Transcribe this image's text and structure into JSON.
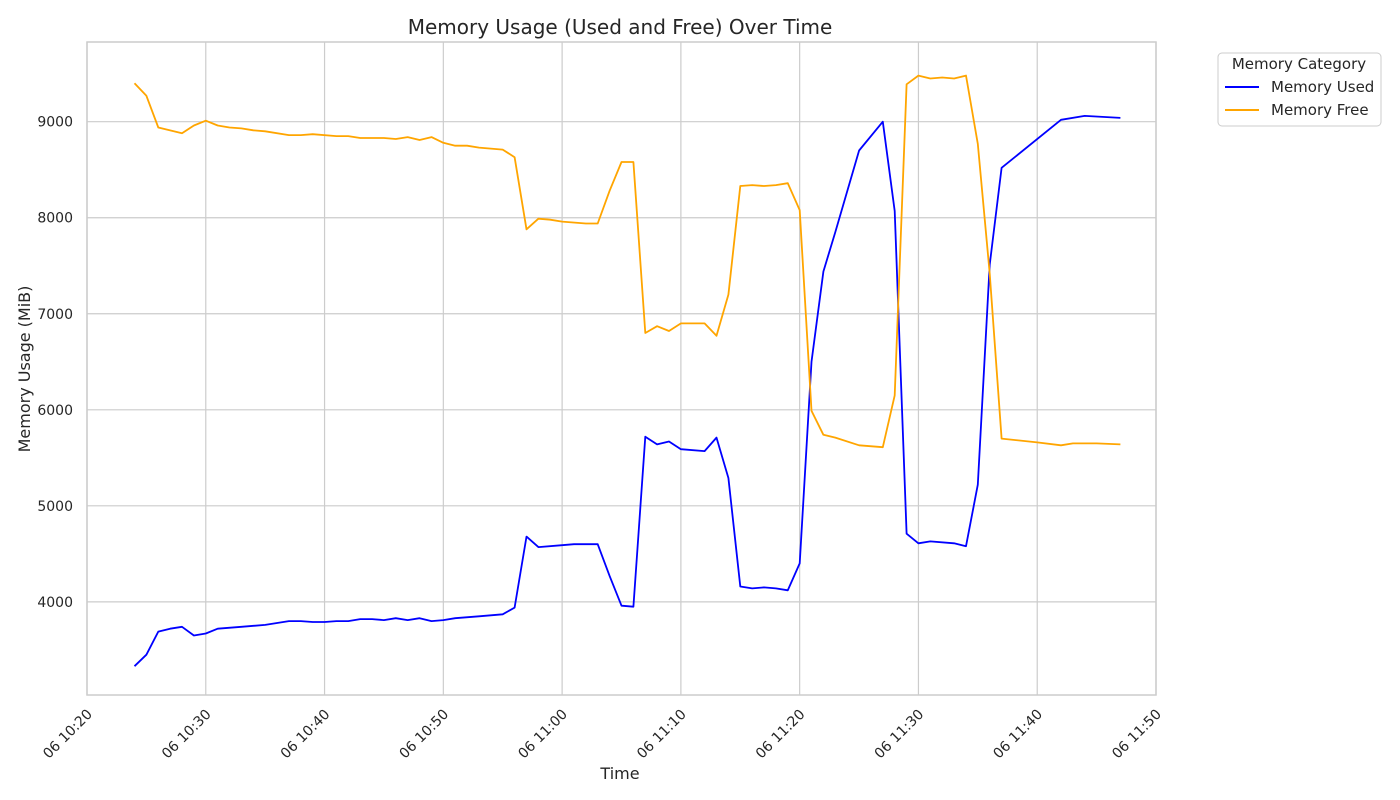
{
  "chart_data": {
    "type": "line",
    "title": "Memory Usage (Used and Free) Over Time",
    "xlabel": "Time",
    "ylabel": "Memory Usage (MiB)",
    "x_range": [
      "2024-01-06 10:20",
      "2024-01-06 11:50"
    ],
    "ylim": [
      3030,
      9830
    ],
    "x_ticks": [
      {
        "t": "10:20",
        "label": "06 10:20"
      },
      {
        "t": "10:30",
        "label": "06 10:30"
      },
      {
        "t": "10:40",
        "label": "06 10:40"
      },
      {
        "t": "10:50",
        "label": "06 10:50"
      },
      {
        "t": "11:00",
        "label": "06 11:00"
      },
      {
        "t": "11:10",
        "label": "06 11:10"
      },
      {
        "t": "11:20",
        "label": "06 11:20"
      },
      {
        "t": "11:30",
        "label": "06 11:30"
      },
      {
        "t": "11:40",
        "label": "06 11:40"
      },
      {
        "t": "11:50",
        "label": "06 11:50"
      }
    ],
    "y_ticks": [
      4000,
      5000,
      6000,
      7000,
      8000,
      9000
    ],
    "grid": true,
    "legend": {
      "title": "Memory Category",
      "placement": "outside-top-right"
    },
    "series": [
      {
        "name": "Memory Used",
        "color": "#0000ff",
        "points": [
          [
            "10:24",
            3330
          ],
          [
            "10:25",
            3450
          ],
          [
            "10:26",
            3690
          ],
          [
            "10:27",
            3720
          ],
          [
            "10:28",
            3740
          ],
          [
            "10:29",
            3650
          ],
          [
            "10:30",
            3670
          ],
          [
            "10:31",
            3720
          ],
          [
            "10:33",
            3740
          ],
          [
            "10:35",
            3760
          ],
          [
            "10:37",
            3800
          ],
          [
            "10:38",
            3800
          ],
          [
            "10:39",
            3790
          ],
          [
            "10:40",
            3790
          ],
          [
            "10:41",
            3800
          ],
          [
            "10:42",
            3800
          ],
          [
            "10:43",
            3820
          ],
          [
            "10:44",
            3820
          ],
          [
            "10:45",
            3810
          ],
          [
            "10:46",
            3830
          ],
          [
            "10:47",
            3810
          ],
          [
            "10:48",
            3830
          ],
          [
            "10:49",
            3800
          ],
          [
            "10:50",
            3810
          ],
          [
            "10:51",
            3830
          ],
          [
            "10:53",
            3850
          ],
          [
            "10:55",
            3870
          ],
          [
            "10:56",
            3940
          ],
          [
            "10:57",
            4680
          ],
          [
            "10:58",
            4570
          ],
          [
            "11:00",
            4590
          ],
          [
            "11:01",
            4600
          ],
          [
            "11:03",
            4600
          ],
          [
            "11:04",
            4270
          ],
          [
            "11:05",
            3960
          ],
          [
            "11:06",
            3950
          ],
          [
            "11:07",
            5720
          ],
          [
            "11:08",
            5640
          ],
          [
            "11:09",
            5670
          ],
          [
            "11:10",
            5590
          ],
          [
            "11:12",
            5570
          ],
          [
            "11:13",
            5710
          ],
          [
            "11:14",
            5290
          ],
          [
            "11:15",
            4160
          ],
          [
            "11:16",
            4140
          ],
          [
            "11:17",
            4150
          ],
          [
            "11:18",
            4140
          ],
          [
            "11:19",
            4120
          ],
          [
            "11:20",
            4400
          ],
          [
            "11:21",
            6500
          ],
          [
            "11:22",
            7440
          ],
          [
            "11:23",
            7850
          ],
          [
            "11:25",
            8700
          ],
          [
            "11:27",
            9000
          ],
          [
            "11:28",
            8070
          ],
          [
            "11:29",
            4710
          ],
          [
            "11:30",
            4610
          ],
          [
            "11:31",
            4630
          ],
          [
            "11:33",
            4610
          ],
          [
            "11:34",
            4580
          ],
          [
            "11:35",
            5220
          ],
          [
            "11:36",
            7510
          ],
          [
            "11:37",
            8520
          ],
          [
            "11:42",
            9020
          ],
          [
            "11:44",
            9060
          ],
          [
            "11:47",
            9040
          ]
        ]
      },
      {
        "name": "Memory Free",
        "color": "#ffa500",
        "points": [
          [
            "10:24",
            9400
          ],
          [
            "10:25",
            9270
          ],
          [
            "10:26",
            8940
          ],
          [
            "10:28",
            8880
          ],
          [
            "10:29",
            8960
          ],
          [
            "10:30",
            9010
          ],
          [
            "10:31",
            8960
          ],
          [
            "10:32",
            8940
          ],
          [
            "10:33",
            8930
          ],
          [
            "10:34",
            8910
          ],
          [
            "10:35",
            8900
          ],
          [
            "10:37",
            8860
          ],
          [
            "10:38",
            8860
          ],
          [
            "10:39",
            8870
          ],
          [
            "10:41",
            8850
          ],
          [
            "10:42",
            8850
          ],
          [
            "10:43",
            8830
          ],
          [
            "10:45",
            8830
          ],
          [
            "10:46",
            8820
          ],
          [
            "10:47",
            8840
          ],
          [
            "10:48",
            8810
          ],
          [
            "10:49",
            8840
          ],
          [
            "10:50",
            8780
          ],
          [
            "10:51",
            8750
          ],
          [
            "10:52",
            8750
          ],
          [
            "10:53",
            8730
          ],
          [
            "10:55",
            8710
          ],
          [
            "10:56",
            8630
          ],
          [
            "10:57",
            7880
          ],
          [
            "10:58",
            7990
          ],
          [
            "10:59",
            7980
          ],
          [
            "11:00",
            7960
          ],
          [
            "11:02",
            7940
          ],
          [
            "11:03",
            7940
          ],
          [
            "11:04",
            8280
          ],
          [
            "11:05",
            8580
          ],
          [
            "11:06",
            8580
          ],
          [
            "11:07",
            6800
          ],
          [
            "11:08",
            6870
          ],
          [
            "11:09",
            6820
          ],
          [
            "11:10",
            6900
          ],
          [
            "11:12",
            6900
          ],
          [
            "11:13",
            6770
          ],
          [
            "11:14",
            7200
          ],
          [
            "11:15",
            8330
          ],
          [
            "11:16",
            8340
          ],
          [
            "11:17",
            8330
          ],
          [
            "11:18",
            8340
          ],
          [
            "11:19",
            8360
          ],
          [
            "11:20",
            8080
          ],
          [
            "11:21",
            5990
          ],
          [
            "11:22",
            5740
          ],
          [
            "11:23",
            5710
          ],
          [
            "11:25",
            5630
          ],
          [
            "11:27",
            5610
          ],
          [
            "11:28",
            6150
          ],
          [
            "11:29",
            9390
          ],
          [
            "11:30",
            9480
          ],
          [
            "11:31",
            9450
          ],
          [
            "11:32",
            9460
          ],
          [
            "11:33",
            9450
          ],
          [
            "11:34",
            9480
          ],
          [
            "11:35",
            8770
          ],
          [
            "11:36",
            7420
          ],
          [
            "11:37",
            5700
          ],
          [
            "11:40",
            5660
          ],
          [
            "11:42",
            5630
          ],
          [
            "11:43",
            5650
          ],
          [
            "11:45",
            5650
          ],
          [
            "11:47",
            5640
          ]
        ]
      }
    ]
  }
}
